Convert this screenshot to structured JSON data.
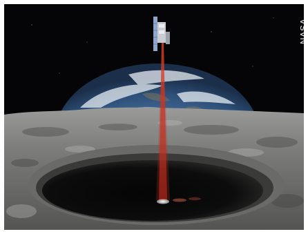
{
  "image": {
    "credit_label": "NASA",
    "colors": {
      "space": "#050507",
      "laser": "#c0301f",
      "earth_ocean": "#3f6a9a",
      "moon_surface": "#8a8a88"
    }
  }
}
